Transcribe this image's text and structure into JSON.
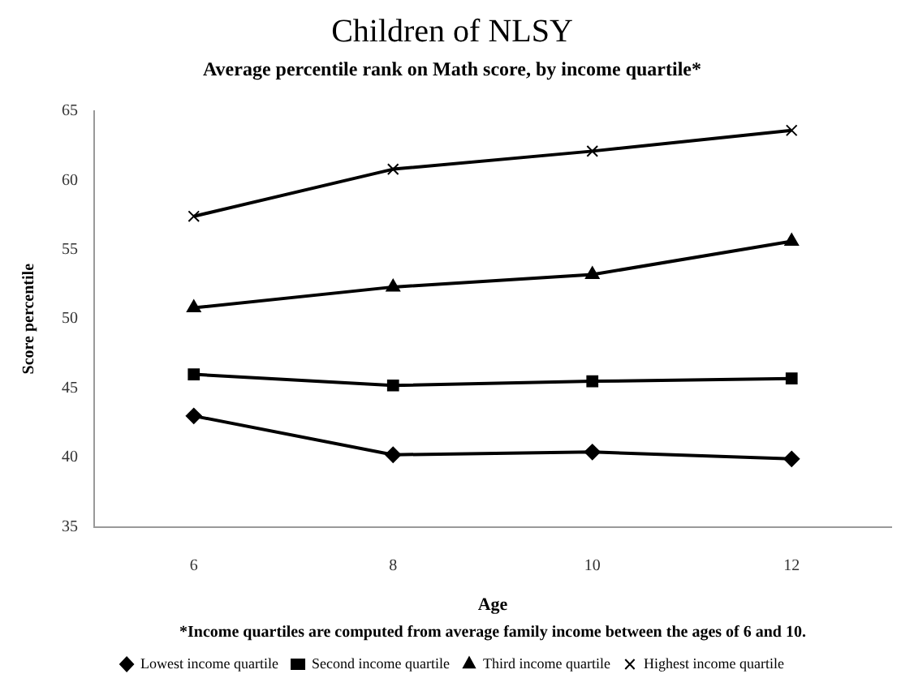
{
  "chart_data": {
    "type": "line",
    "title": "Children of NLSY",
    "subtitle": "Average percentile rank on Math score, by income quartile*",
    "xlabel": "Age",
    "ylabel": "Score percentile",
    "categories": [
      "6",
      "8",
      "10",
      "12"
    ],
    "series": [
      {
        "name": "Lowest income quartile",
        "color": "#000000",
        "marker": "diamond",
        "values": [
          43.0,
          40.2,
          40.4,
          39.9
        ]
      },
      {
        "name": "Second income quartile",
        "color": "#000000",
        "marker": "square",
        "values": [
          46.0,
          45.2,
          45.5,
          45.7
        ]
      },
      {
        "name": "Third income quartile",
        "color": "#000000",
        "marker": "triangle",
        "values": [
          50.8,
          52.3,
          53.2,
          55.6
        ]
      },
      {
        "name": "Highest income quartile",
        "color": "#000000",
        "marker": "cross",
        "values": [
          57.4,
          60.8,
          62.1,
          63.6
        ]
      }
    ],
    "ylim": [
      35,
      65
    ],
    "yticks": [
      35,
      40,
      45,
      50,
      55,
      60,
      65
    ],
    "grid": false,
    "legend": "bottom",
    "line_style": "solid",
    "annotations": [
      "*Income quartiles are computed from average family income between the ages of 6 and 10."
    ]
  }
}
